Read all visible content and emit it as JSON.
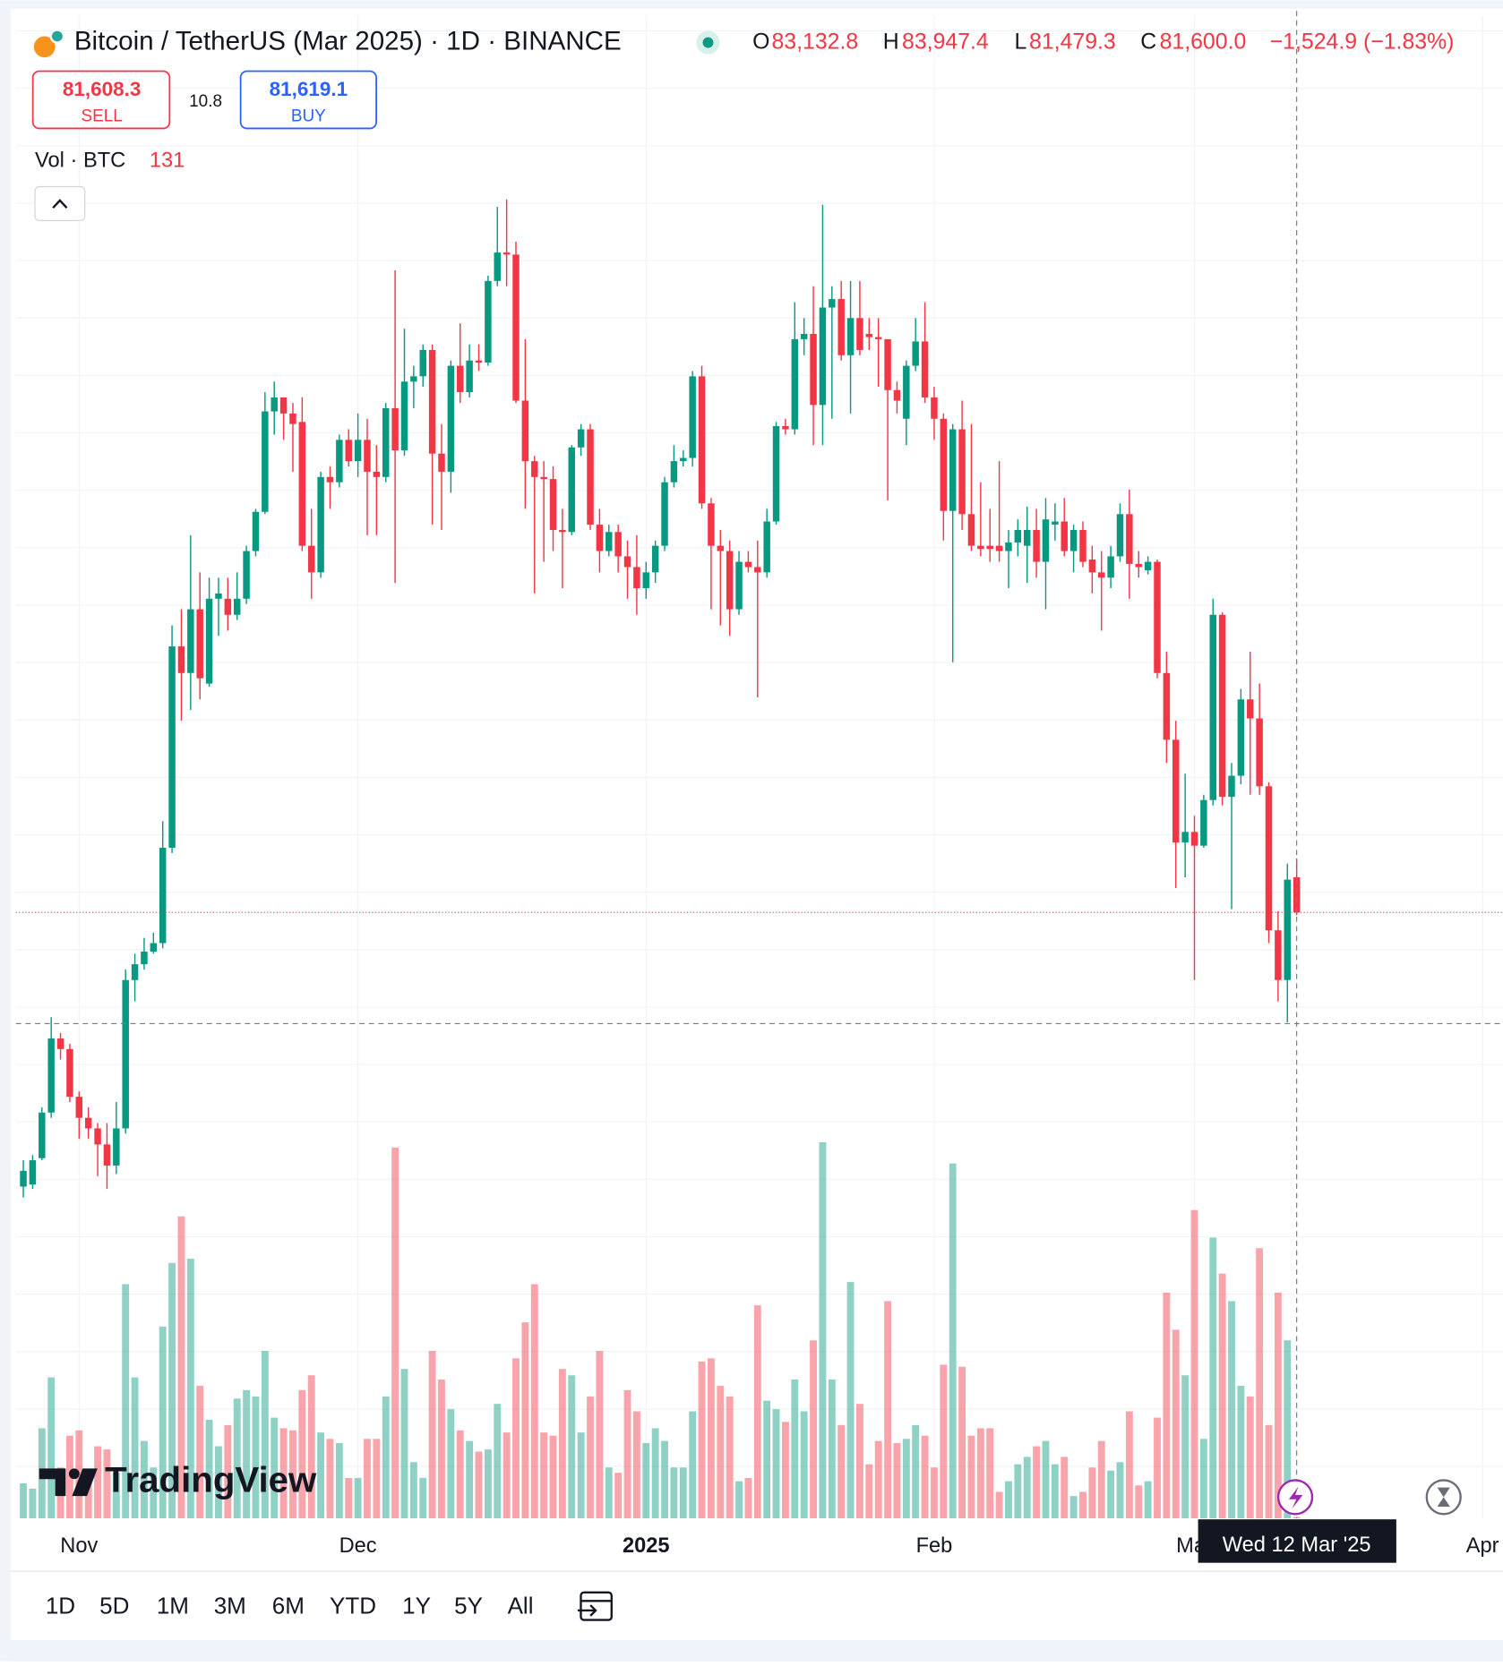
{
  "header": {
    "title": "Bitcoin / TetherUS (Mar 2025) · 1D · BINANCE",
    "fields": [
      {
        "key": "O",
        "value": "83,132.8"
      },
      {
        "key": "H",
        "value": "83,947.4"
      },
      {
        "key": "L",
        "value": "81,479.3"
      },
      {
        "key": "C",
        "value": "81,600.0"
      }
    ],
    "change": "−1,524.9 (−1.83%)"
  },
  "trade": {
    "sell_price": "81,608.3",
    "sell": "SELL",
    "spread": "10.8",
    "buy_price": "81,619.1",
    "buy": "BUY"
  },
  "volume_label": "Vol · BTC",
  "logo": "TradingView",
  "ranges": [
    "1D",
    "5D",
    "1M",
    "3M",
    "6M",
    "YTD",
    "1Y",
    "5Y",
    "All"
  ],
  "chart_data": {
    "type": "candlestick",
    "up_color": "#089981",
    "down_color": "#f23645",
    "grid": true,
    "xlim": [
      -0.8,
      159.2
    ],
    "ylim": [
      55175,
      120690
    ],
    "y2lim": [
      0,
      141800
    ],
    "xticks": [
      {
        "value": 6,
        "label": "Nov"
      },
      {
        "value": 36,
        "label": "Dec"
      },
      {
        "value": 67,
        "label": "2025"
      },
      {
        "value": 98,
        "label": "Feb"
      },
      {
        "value": 126,
        "label": "Mar"
      },
      {
        "value": 157,
        "label": "Apr"
      }
    ],
    "crosshair": {
      "x": 137,
      "label": "Wed 12 Mar '25",
      "y": 76750
    },
    "ohlc": [
      [
        69640,
        70790,
        69170,
        70330
      ],
      [
        69730,
        71020,
        69540,
        70790
      ],
      [
        70880,
        73100,
        70790,
        72870
      ],
      [
        72870,
        77030,
        72640,
        76100
      ],
      [
        76100,
        76340,
        75180,
        75640
      ],
      [
        75640,
        75870,
        73330,
        73560
      ],
      [
        73560,
        73790,
        71720,
        72640
      ],
      [
        72640,
        73100,
        71720,
        72180
      ],
      [
        72180,
        72410,
        70100,
        71480
      ],
      [
        71480,
        72410,
        69540,
        70560
      ],
      [
        70560,
        73330,
        70190,
        72180
      ],
      [
        72180,
        79110,
        71950,
        78650
      ],
      [
        78650,
        79800,
        77720,
        79340
      ],
      [
        79340,
        80490,
        79110,
        79890
      ],
      [
        79890,
        80720,
        79800,
        80260
      ],
      [
        80260,
        85580,
        80030,
        84420
      ],
      [
        84420,
        94120,
        84190,
        93200
      ],
      [
        93200,
        94820,
        89960,
        92040
      ],
      [
        92040,
        98050,
        90430,
        94820
      ],
      [
        94820,
        96430,
        90890,
        91810
      ],
      [
        91580,
        96200,
        91440,
        95280
      ],
      [
        95280,
        96200,
        93660,
        95510
      ],
      [
        95280,
        96200,
        93890,
        94580
      ],
      [
        94580,
        96430,
        94350,
        95280
      ],
      [
        95280,
        97590,
        95050,
        97360
      ],
      [
        97360,
        99200,
        97130,
        99070
      ],
      [
        99070,
        104290,
        98970,
        103450
      ],
      [
        103450,
        104750,
        102440,
        104060
      ],
      [
        104060,
        104060,
        102210,
        103360
      ],
      [
        103360,
        103820,
        100820,
        102900
      ],
      [
        102990,
        104060,
        97360,
        97590
      ],
      [
        97590,
        99200,
        95280,
        96430
      ],
      [
        96430,
        100820,
        96200,
        100590
      ],
      [
        100590,
        101050,
        99200,
        100360
      ],
      [
        100360,
        102440,
        100130,
        102210
      ],
      [
        102210,
        102670,
        101050,
        101280
      ],
      [
        101280,
        103360,
        100590,
        102210
      ],
      [
        102210,
        103130,
        98050,
        100820
      ],
      [
        100820,
        101980,
        98050,
        100590
      ],
      [
        100590,
        103820,
        100360,
        103590
      ],
      [
        103590,
        109600,
        95970,
        101750
      ],
      [
        101750,
        107060,
        101510,
        104750
      ],
      [
        104750,
        105440,
        103590,
        104980
      ],
      [
        104980,
        106370,
        104520,
        106130
      ],
      [
        106130,
        106370,
        98510,
        101610
      ],
      [
        101610,
        102900,
        98280,
        100820
      ],
      [
        100820,
        105670,
        99900,
        105440
      ],
      [
        105440,
        107290,
        103820,
        104290
      ],
      [
        104290,
        106370,
        104060,
        105670
      ],
      [
        105670,
        106370,
        105210,
        105580
      ],
      [
        105580,
        109370,
        105440,
        109140
      ],
      [
        109140,
        112370,
        108910,
        110380
      ],
      [
        110380,
        112690,
        108910,
        110290
      ],
      [
        110290,
        110850,
        103820,
        103920
      ],
      [
        103920,
        106600,
        99200,
        101280
      ],
      [
        101280,
        101510,
        95510,
        100590
      ],
      [
        100590,
        101280,
        96890,
        100500
      ],
      [
        100500,
        101050,
        97360,
        98280
      ],
      [
        98280,
        99200,
        95740,
        98190
      ],
      [
        98190,
        101980,
        98050,
        101880
      ],
      [
        101880,
        102900,
        101510,
        102670
      ],
      [
        102670,
        102900,
        98280,
        98510
      ],
      [
        98510,
        99200,
        96430,
        97360
      ],
      [
        97360,
        98510,
        97130,
        98190
      ],
      [
        98190,
        98510,
        96430,
        97130
      ],
      [
        97130,
        97820,
        95280,
        96660
      ],
      [
        96660,
        98050,
        94580,
        95740
      ],
      [
        95740,
        96890,
        95280,
        96430
      ],
      [
        96430,
        97820,
        95970,
        97590
      ],
      [
        97590,
        100590,
        97360,
        100360
      ],
      [
        100360,
        101980,
        100130,
        101280
      ],
      [
        101280,
        101750,
        101050,
        101420
      ],
      [
        101420,
        105210,
        101050,
        104980
      ],
      [
        104980,
        105440,
        99200,
        99440
      ],
      [
        99440,
        99670,
        94820,
        97590
      ],
      [
        97590,
        98280,
        94120,
        97360
      ],
      [
        97360,
        97820,
        93660,
        94820
      ],
      [
        94820,
        97360,
        94580,
        96890
      ],
      [
        96890,
        97360,
        96430,
        96660
      ],
      [
        96660,
        97820,
        90980,
        96430
      ],
      [
        96430,
        99200,
        96200,
        98650
      ],
      [
        98650,
        102990,
        98510,
        102810
      ],
      [
        102810,
        103130,
        102440,
        102670
      ],
      [
        102670,
        108210,
        102440,
        106600
      ],
      [
        106600,
        107520,
        105900,
        106830
      ],
      [
        106830,
        108910,
        101980,
        103730
      ],
      [
        103730,
        112460,
        101980,
        107980
      ],
      [
        107980,
        108910,
        103130,
        108350
      ],
      [
        108350,
        109140,
        105670,
        105900
      ],
      [
        105900,
        109140,
        103360,
        107520
      ],
      [
        107520,
        109140,
        105900,
        106130
      ],
      [
        106830,
        107520,
        106130,
        106690
      ],
      [
        106690,
        107520,
        104520,
        106600
      ],
      [
        106600,
        106600,
        99570,
        104380
      ],
      [
        104380,
        104750,
        103360,
        103920
      ],
      [
        103130,
        105670,
        101980,
        105440
      ],
      [
        105440,
        107520,
        105210,
        106500
      ],
      [
        106500,
        108210,
        103820,
        104060
      ],
      [
        104060,
        104520,
        102210,
        103130
      ],
      [
        103130,
        103360,
        97820,
        99110
      ],
      [
        99110,
        102900,
        92510,
        102670
      ],
      [
        102670,
        103920,
        98280,
        98970
      ],
      [
        98970,
        102900,
        97360,
        97590
      ],
      [
        97590,
        100360,
        97130,
        97450
      ],
      [
        97590,
        99200,
        96890,
        97450
      ],
      [
        97590,
        101280,
        96890,
        97360
      ],
      [
        97360,
        98280,
        95740,
        97730
      ],
      [
        97730,
        98740,
        97130,
        98280
      ],
      [
        97590,
        99300,
        95970,
        98280
      ],
      [
        98280,
        99200,
        96200,
        96890
      ],
      [
        96890,
        99670,
        94820,
        98740
      ],
      [
        98510,
        99440,
        97820,
        98650
      ],
      [
        98650,
        99670,
        97130,
        97360
      ],
      [
        97360,
        98510,
        96430,
        98280
      ],
      [
        98280,
        98650,
        96660,
        96890
      ],
      [
        96990,
        97590,
        95510,
        96430
      ],
      [
        96430,
        97360,
        93890,
        96200
      ],
      [
        96200,
        97590,
        95740,
        97130
      ],
      [
        97130,
        99440,
        96890,
        98970
      ],
      [
        98970,
        100040,
        95280,
        96800
      ],
      [
        96800,
        97360,
        96200,
        96660
      ],
      [
        96520,
        97130,
        96340,
        96890
      ],
      [
        96890,
        96990,
        91810,
        92040
      ],
      [
        92040,
        92970,
        88120,
        89130
      ],
      [
        89130,
        89960,
        82660,
        84650
      ],
      [
        84650,
        87650,
        83130,
        85110
      ],
      [
        85110,
        85810,
        78650,
        84510
      ],
      [
        84510,
        86730,
        84420,
        86500
      ],
      [
        86500,
        95280,
        86270,
        94580
      ],
      [
        94580,
        94680,
        86270,
        86640
      ],
      [
        86640,
        88120,
        81740,
        87560
      ],
      [
        87560,
        91350,
        87190,
        90890
      ],
      [
        90890,
        92970,
        86730,
        90060
      ],
      [
        90060,
        91580,
        86730,
        87100
      ],
      [
        87100,
        87280,
        80260,
        80820
      ],
      [
        80820,
        81650,
        77720,
        78650
      ],
      [
        78650,
        83730,
        76800,
        83030
      ],
      [
        83132.8,
        83947.4,
        81479.3,
        81600.0
      ]
    ],
    "volumes": [
      3300,
      2800,
      8500,
      13300,
      4800,
      7800,
      8300,
      4300,
      6800,
      6500,
      4300,
      22100,
      13300,
      7300,
      4800,
      18100,
      24100,
      28500,
      24500,
      12500,
      9300,
      6800,
      8800,
      11300,
      12100,
      11500,
      15800,
      9500,
      8500,
      8300,
      12100,
      13500,
      8100,
      7500,
      7100,
      3800,
      3800,
      7500,
      7500,
      11500,
      35000,
      14100,
      5300,
      3800,
      15800,
      13100,
      10300,
      8300,
      7300,
      6300,
      6500,
      10800,
      8100,
      15100,
      18500,
      22100,
      8100,
      7800,
      14100,
      13500,
      8100,
      11500,
      15800,
      4800,
      4300,
      12100,
      10100,
      7100,
      8500,
      7300,
      4800,
      4800,
      10100,
      14800,
      15100,
      12500,
      11500,
      3500,
      3800,
      20100,
      11100,
      10300,
      9100,
      13100,
      10100,
      16800,
      35500,
      13100,
      8800,
      22300,
      10800,
      5100,
      7300,
      20500,
      7100,
      7500,
      8800,
      7800,
      4800,
      14500,
      33500,
      14300,
      7800,
      8500,
      8500,
      2500,
      3500,
      5100,
      5800,
      6800,
      7300,
      5100,
      5800,
      2100,
      2500,
      4800,
      7300,
      4500,
      5300,
      10100,
      3100,
      3500,
      9500,
      21300,
      17800,
      13500,
      29100,
      7500,
      26500,
      23100,
      20500,
      12500,
      11500,
      25500,
      8800,
      21300,
      16800,
      131
    ]
  }
}
